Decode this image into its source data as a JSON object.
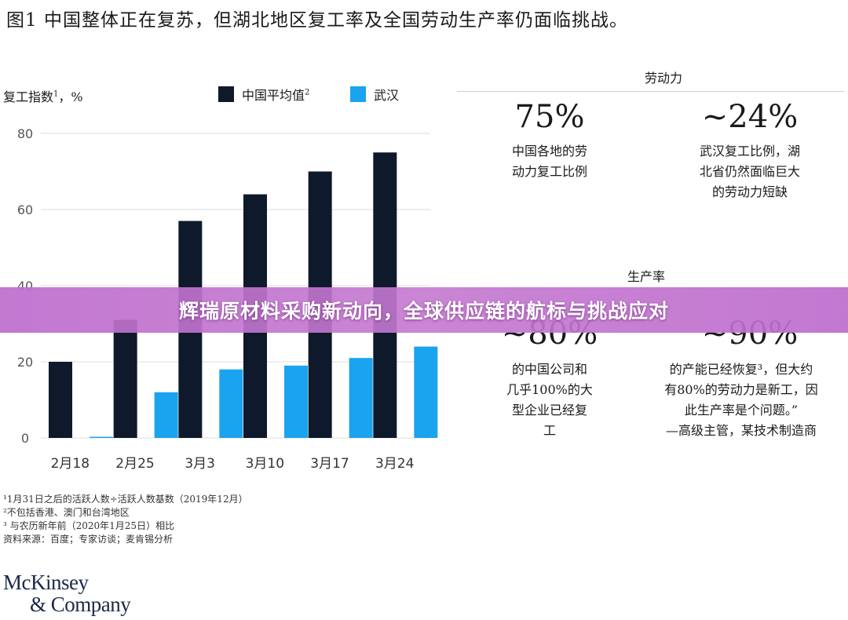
{
  "figure": {
    "title": "图1 中国整体正在复苏，但湖北地区复工率及全国劳动生产率仍面临挑战。",
    "axis_caption": "复工指数",
    "axis_caption_sup": "1",
    "axis_caption_unit": "，%"
  },
  "legend": {
    "series1_label": "中国平均值",
    "series1_sup": "2",
    "series2_label": "武汉"
  },
  "colors": {
    "series1": "#0e1a2b",
    "series2": "#1aa3ef",
    "grid": "#dddddd",
    "banner": "#c074cf"
  },
  "chart_data": {
    "type": "bar",
    "categories": [
      "2月18",
      "2月25",
      "3月3",
      "3月10",
      "3月17",
      "3月24"
    ],
    "series": [
      {
        "name": "中国平均值",
        "values": [
          20,
          31,
          57,
          64,
          70,
          75
        ]
      },
      {
        "name": "武汉",
        "values": [
          0.3,
          12,
          18,
          19,
          21,
          24
        ]
      }
    ],
    "ylim": [
      0,
      80
    ],
    "yticks": [
      0,
      20,
      40,
      60,
      80
    ],
    "grid": true,
    "legend_position": "top"
  },
  "labor": {
    "title": "劳动力",
    "stat1_value": "75%",
    "stat1_desc_line1": "中国各地的劳",
    "stat1_desc_line2": "动力复工比例",
    "stat2_value": "~24%",
    "stat2_desc_line1": "武汉复工比例，湖",
    "stat2_desc_line2": "北省仍然面临巨大",
    "stat2_desc_line3": "的劳动力短缺"
  },
  "productivity": {
    "title": "生产率",
    "stat1_value": "~80%",
    "stat1_desc_line1": "的中国公司和",
    "stat1_desc_line2": "几乎100%的大",
    "stat1_desc_line3": "型企业已经复",
    "stat1_desc_line4": "工",
    "stat2_value": "~90%",
    "stat2_desc_line1": "的产能已经恢复³，但大约",
    "stat2_desc_line2": "有80%的劳动力是新工，因",
    "stat2_desc_line3": "此生产率是个问题。”",
    "stat2_desc_line4": "—高级主管，某技术制造商"
  },
  "footnotes": {
    "line1": "¹1月31日之后的活跃人数÷活跃人数基数（2019年12月）",
    "line2": "²不包括香港、澳门和台湾地区",
    "line3": "³ 与农历新年前（2020年1月25日）相比",
    "line4": "资料来源：百度；专家访谈；麦肯锡分析"
  },
  "logo": {
    "line1": "McKinsey",
    "line2": "& Company"
  },
  "banner": {
    "text": "辉瑞原材料采购新动向，全球供应链的航标与挑战应对"
  }
}
